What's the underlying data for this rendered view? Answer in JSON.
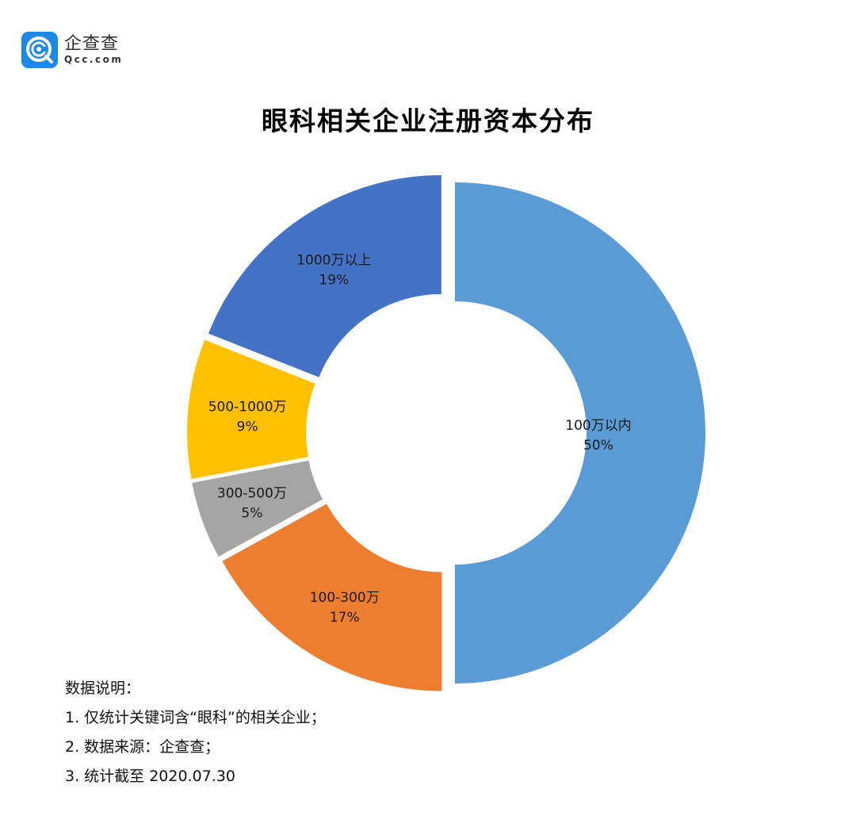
{
  "brand": {
    "name_cn": "企查查",
    "name_en": "Qcc.com",
    "icon": "qcc-logo-icon",
    "color": "#1e88e5"
  },
  "title": "眼科相关企业注册资本分布",
  "chart_data": {
    "type": "pie",
    "subtype": "donut-exploded",
    "title": "眼科相关企业注册资本分布",
    "categories": [
      "100万以内",
      "100-300万",
      "300-500万",
      "500-1000万",
      "1000万以上"
    ],
    "values": [
      50,
      17,
      5,
      9,
      19
    ],
    "unit": "%",
    "colors": [
      "#5b9bd5",
      "#ed7d31",
      "#a5a5a5",
      "#ffc000",
      "#4472c4"
    ],
    "labels": [
      {
        "name": "100万以内",
        "pct": "50%"
      },
      {
        "name": "100-300万",
        "pct": "17%"
      },
      {
        "name": "300-500万",
        "pct": "5%"
      },
      {
        "name": "500-1000万",
        "pct": "9%"
      },
      {
        "name": "1000万以上",
        "pct": "19%"
      }
    ],
    "start_angle": 0,
    "direction": "clockwise",
    "legend": "none"
  },
  "notes": {
    "heading": "数据说明：",
    "items": [
      "1. 仅统计关键词含“眼科”的相关企业；",
      "2. 数据来源：企查查；",
      "3. 统计截至 2020.07.30"
    ]
  }
}
